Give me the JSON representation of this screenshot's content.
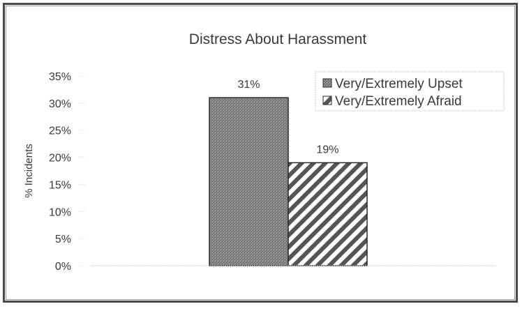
{
  "chart_data": {
    "type": "bar",
    "title": "Distress About Harassment",
    "ylabel": "% Incidents",
    "xlabel": "",
    "ylim": [
      0,
      35
    ],
    "y_ticks": [
      "0%",
      "5%",
      "10%",
      "15%",
      "20%",
      "25%",
      "30%",
      "35%"
    ],
    "y_tick_values": [
      0,
      5,
      10,
      15,
      20,
      25,
      30,
      35
    ],
    "grid": false,
    "legend_position": "top-right",
    "series": [
      {
        "name": "Very/Extremely Upset",
        "value": 31,
        "label": "31%",
        "fill": "dark-stipple",
        "color": "#6e6e6e"
      },
      {
        "name": "Very/Extremely Afraid",
        "value": 19,
        "label": "19%",
        "fill": "diagonal-stripes",
        "color": "#555555"
      }
    ]
  }
}
